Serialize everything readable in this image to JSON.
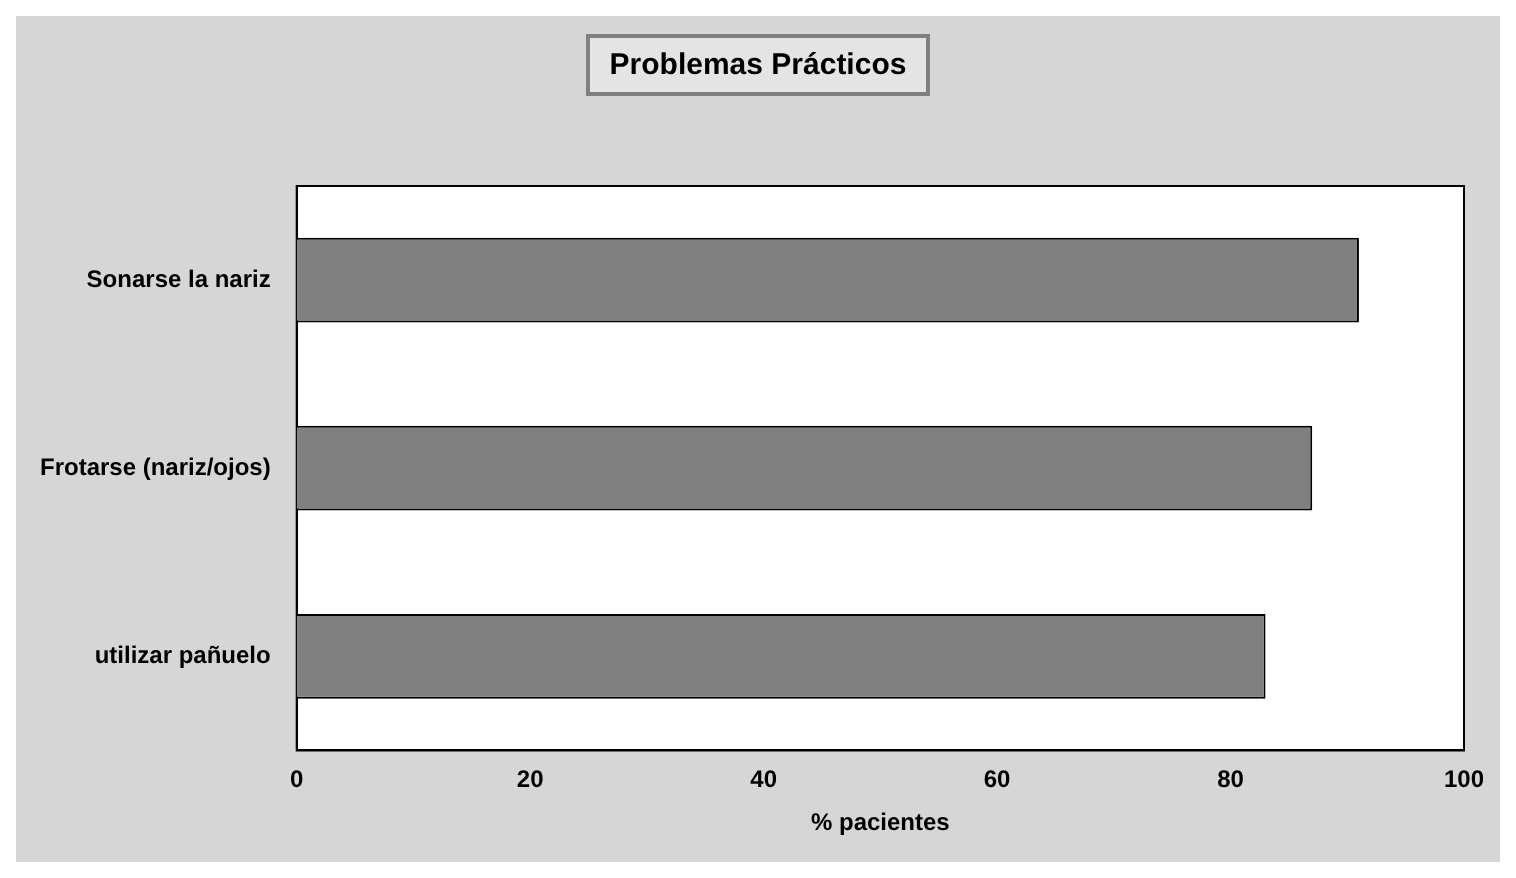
{
  "chart_data": {
    "type": "bar",
    "orientation": "horizontal",
    "title": "Problemas Prácticos",
    "xlabel": "% pacientes",
    "categories": [
      "Sonarse la nariz",
      "Frotarse (nariz/ojos)",
      "utilizar pañuelo"
    ],
    "values": [
      91,
      87,
      83
    ],
    "color": "#808080",
    "xlim": [
      0,
      100
    ],
    "xticks": [
      0,
      20,
      40,
      60,
      80,
      100
    ],
    "grid": false,
    "legend": false
  }
}
